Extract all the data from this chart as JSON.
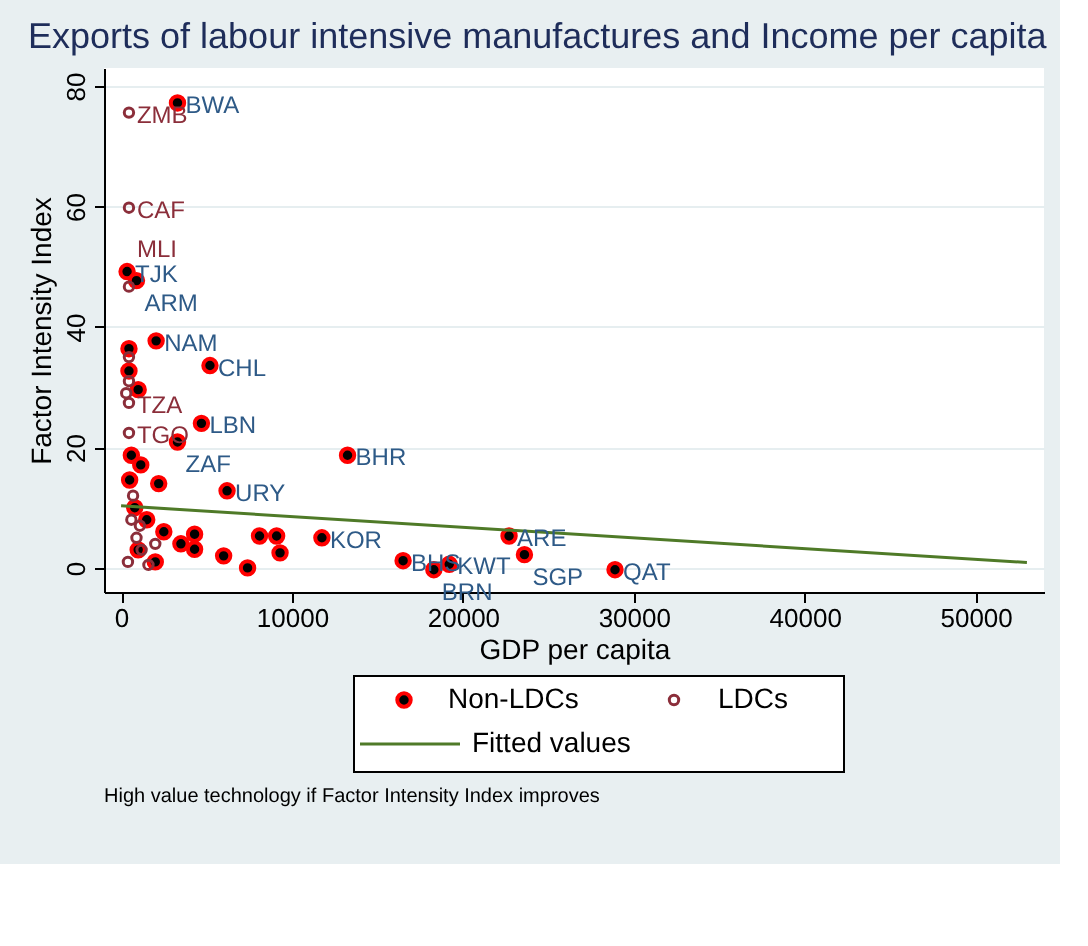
{
  "chart_data": {
    "type": "scatter",
    "title": "Exports of labour intensive manufactures and Income per capita",
    "xlabel": "GDP per capita",
    "ylabel": "Factor Intensity Index",
    "xlim": [
      -1000,
      54000
    ],
    "ylim": [
      -4,
      83
    ],
    "xticks": [
      0,
      10000,
      20000,
      30000,
      40000,
      50000
    ],
    "yticks": [
      0,
      20,
      40,
      60,
      80
    ],
    "grid": "y",
    "legend": "bottom",
    "series": [
      {
        "name": "Non-LDCs",
        "marker": "circle",
        "color": "#000000",
        "x": [
          3300,
          350,
          900,
          2050,
          5200,
          4700,
          3300,
          13250,
          6200,
          11750,
          22700,
          23600,
          28900,
          16500,
          18300,
          19200,
          460,
          460,
          1000,
          600,
          1150,
          500,
          2200,
          4300,
          8100,
          9100,
          9300,
          7400,
          4300,
          1500,
          2500,
          3500,
          1000,
          2000,
          6000,
          800
        ],
        "values": [
          77.2,
          49.2,
          47.7,
          37.7,
          33.6,
          24,
          20.9,
          18.7,
          12.8,
          5,
          5.3,
          2.2,
          -0.3,
          1.2,
          -0.3,
          0.6,
          36.4,
          32.7,
          29.6,
          18.7,
          17.1,
          14.6,
          14,
          5.6,
          5.3,
          5.3,
          2.5,
          0,
          3.1,
          8,
          6,
          4,
          3,
          1,
          2,
          10
        ]
      },
      {
        "name": "LDCs",
        "marker": "circle",
        "color": "#8b2e3a",
        "x": [
          460,
          460,
          460,
          460,
          460,
          460,
          460,
          300,
          600,
          900,
          1200,
          400,
          1600,
          700,
          1100,
          2000
        ],
        "values": [
          75.6,
          59.8,
          46.7,
          27.4,
          22.4,
          35,
          31,
          29,
          8,
          5,
          3,
          1,
          0.5,
          12,
          7,
          4
        ]
      },
      {
        "name": "Fitted values",
        "type": "line",
        "color": "#4f7a28",
        "line_style": "solid",
        "x": [
          0,
          53000
        ],
        "values": [
          10.3,
          0.9
        ]
      }
    ],
    "annotations": [
      {
        "text": "BWA",
        "x": 3300,
        "y": 77.2
      },
      {
        "text": "TJK",
        "x": 350,
        "y": 49.2
      },
      {
        "text": "ARM",
        "x": 900,
        "y": 47.7
      },
      {
        "text": "NAM",
        "x": 2050,
        "y": 37.7
      },
      {
        "text": "CHL",
        "x": 5200,
        "y": 33.6
      },
      {
        "text": "LBN",
        "x": 4700,
        "y": 24
      },
      {
        "text": "ZAF",
        "x": 3300,
        "y": 20.9
      },
      {
        "text": "BHR",
        "x": 13250,
        "y": 18.7
      },
      {
        "text": "URY",
        "x": 6200,
        "y": 12.8
      },
      {
        "text": "KOR",
        "x": 11750,
        "y": 5
      },
      {
        "text": "ARE",
        "x": 22700,
        "y": 5.3
      },
      {
        "text": "SGP",
        "x": 23600,
        "y": 2.2
      },
      {
        "text": "QAT",
        "x": 28900,
        "y": -0.3
      },
      {
        "text": "BHS",
        "x": 16500,
        "y": 1.2
      },
      {
        "text": "BRN",
        "x": 18300,
        "y": -0.3
      },
      {
        "text": "KWT",
        "x": 19200,
        "y": 0.6
      },
      {
        "text": "ZMB",
        "x": 460,
        "y": 75.6
      },
      {
        "text": "CAF",
        "x": 460,
        "y": 59.8
      },
      {
        "text": "MLI",
        "x": 460,
        "y": 46.7
      },
      {
        "text": "TZA",
        "x": 460,
        "y": 27.4
      },
      {
        "text": "TGO",
        "x": 460,
        "y": 22.4
      },
      "High value technology if Factor Intensity Index improves"
    ]
  }
}
